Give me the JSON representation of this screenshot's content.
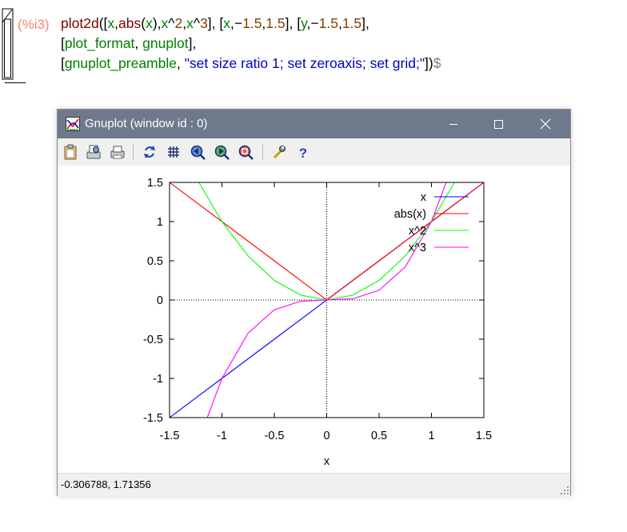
{
  "cell": {
    "label": "(%i3)",
    "line1": {
      "t1": "plot2d",
      "t2": "([",
      "t3": "x",
      "t4": ",",
      "t5": "abs",
      "t6": "(",
      "t7": "x",
      "t8": "),",
      "t9": "x",
      "t10": "^",
      "t11": "2",
      "t12": ",",
      "t13": "x",
      "t14": "^",
      "t15": "3",
      "t16": "], [",
      "t17": "x",
      "t18": ",−",
      "t19": "1.5",
      "t20": ",",
      "t21": "1.5",
      "t22": "], [",
      "t23": "y",
      "t24": ",−",
      "t25": "1.5",
      "t26": ",",
      "t27": "1.5",
      "t28": "],"
    },
    "line2": {
      "t1": "[",
      "t2": "plot_format",
      "t3": ", ",
      "t4": "gnuplot",
      "t5": "],",
      "t6": ""
    },
    "line3": {
      "t1": "[",
      "t2": "gnuplot_preamble",
      "t3": ", ",
      "t4": "\"set size ratio 1; set zeroaxis; set grid;\"",
      "t5": "])",
      "t6": "$"
    }
  },
  "window": {
    "title": "Gnuplot (window id : 0)",
    "minimize_icon": "minimize-icon",
    "maximize_icon": "maximize-icon",
    "close_icon": "close-icon",
    "toolbar": [
      "clipboard-icon",
      "print-preview-icon",
      "printer-icon",
      "replot-icon",
      "grid-icon",
      "zoom-prev-icon",
      "zoom-next-icon",
      "autoscale-icon",
      "config-icon",
      "help-icon"
    ],
    "status": "-0.306788,  1.71356"
  },
  "chart_data": {
    "type": "line",
    "xlabel": "x",
    "ylabel": "",
    "xlim": [
      -1.5,
      1.5
    ],
    "ylim": [
      -1.5,
      1.5
    ],
    "xticks": [
      "-1.5",
      "-1",
      "-0.5",
      "0",
      "0.5",
      "1",
      "1.5"
    ],
    "yticks": [
      "-1.5",
      "-1",
      "-0.5",
      "0",
      "0.5",
      "1",
      "1.5"
    ],
    "xtick_values": [
      -1.5,
      -1,
      -0.5,
      0,
      0.5,
      1,
      1.5
    ],
    "ytick_values": [
      -1.5,
      -1,
      -0.5,
      0,
      0.5,
      1,
      1.5
    ],
    "grid": true,
    "zeroaxis": true,
    "legend_position": "top-right",
    "series": [
      {
        "name": "x",
        "color": "#0000ff",
        "points": [
          [
            -1.5,
            -1.5
          ],
          [
            -1.0,
            -1.0
          ],
          [
            -0.5,
            -0.5
          ],
          [
            0,
            0
          ],
          [
            0.5,
            0.5
          ],
          [
            1.0,
            1.0
          ],
          [
            1.5,
            1.5
          ]
        ]
      },
      {
        "name": "abs(x)",
        "color": "#ff0000",
        "points": [
          [
            -1.5,
            1.5
          ],
          [
            -1.0,
            1.0
          ],
          [
            -0.5,
            0.5
          ],
          [
            0,
            0
          ],
          [
            0.5,
            0.5
          ],
          [
            1.0,
            1.0
          ],
          [
            1.5,
            1.5
          ]
        ]
      },
      {
        "name": "x^2",
        "color": "#00ff00",
        "points": [
          [
            -1.22,
            1.5
          ],
          [
            -1.0,
            1.0
          ],
          [
            -0.75,
            0.5625
          ],
          [
            -0.5,
            0.25
          ],
          [
            -0.25,
            0.0625
          ],
          [
            0,
            0
          ],
          [
            0.25,
            0.0625
          ],
          [
            0.5,
            0.25
          ],
          [
            0.75,
            0.5625
          ],
          [
            1.0,
            1.0
          ],
          [
            1.22,
            1.5
          ]
        ]
      },
      {
        "name": "x^3",
        "color": "#ff00ff",
        "points": [
          [
            -1.14,
            -1.5
          ],
          [
            -1.0,
            -1.0
          ],
          [
            -0.75,
            -0.4219
          ],
          [
            -0.5,
            -0.125
          ],
          [
            -0.25,
            -0.0156
          ],
          [
            0,
            0
          ],
          [
            0.25,
            0.0156
          ],
          [
            0.5,
            0.125
          ],
          [
            0.75,
            0.4219
          ],
          [
            1.0,
            1.0
          ],
          [
            1.14,
            1.5
          ]
        ]
      }
    ]
  }
}
